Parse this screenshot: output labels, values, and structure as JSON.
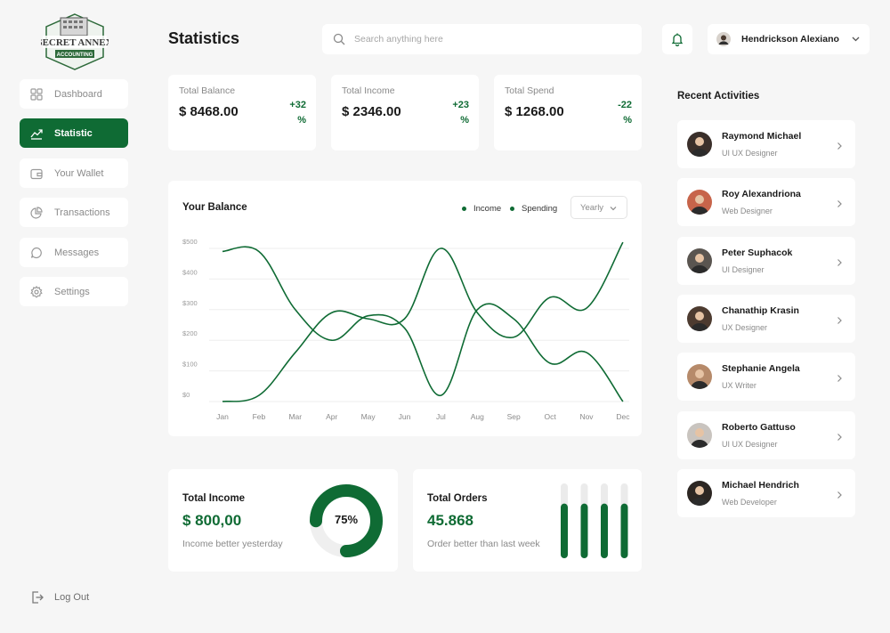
{
  "brand": {
    "logo_line1": "SECRET ANNEX",
    "logo_line2": "ACCOUNTING",
    "accent": "#0f6b34"
  },
  "sidebar": {
    "items": [
      {
        "label": "Dashboard",
        "icon": "grid-icon",
        "active": false
      },
      {
        "label": "Statistic",
        "icon": "trend-chart-icon",
        "active": true
      },
      {
        "label": "Your Wallet",
        "icon": "wallet-icon",
        "active": false
      },
      {
        "label": "Transactions",
        "icon": "pie-chart-icon",
        "active": false
      },
      {
        "label": "Messages",
        "icon": "chat-bubble-icon",
        "active": false
      },
      {
        "label": "Settings",
        "icon": "gear-icon",
        "active": false
      }
    ],
    "logout_label": "Log Out"
  },
  "header": {
    "title": "Statistics",
    "search_placeholder": "Search anything here",
    "user_name": "Hendrickson Alexiano"
  },
  "stats": [
    {
      "label": "Total Balance",
      "value": "$ 8468.00",
      "delta": "+32 %"
    },
    {
      "label": "Total Income",
      "value": "$ 2346.00",
      "delta": "+23 %"
    },
    {
      "label": "Total Spend",
      "value": "$ 1268.00",
      "delta": "-22 %"
    }
  ],
  "balance_chart": {
    "title": "Your Balance",
    "period": "Yearly",
    "legend": [
      "Income",
      "Spending"
    ]
  },
  "chart_data": {
    "type": "line",
    "title": "Your Balance",
    "categories": [
      "Jan",
      "Feb",
      "Mar",
      "Apr",
      "May",
      "Jun",
      "Jul",
      "Aug",
      "Sep",
      "Oct",
      "Nov",
      "Dec"
    ],
    "y_ticks": [
      "$0",
      "$100",
      "$200",
      "$300",
      "$400",
      "$500"
    ],
    "ylim": [
      0,
      500
    ],
    "grid": true,
    "legend_position": "top-right",
    "series": [
      {
        "name": "Income",
        "values": [
          490,
          490,
          300,
          200,
          280,
          240,
          20,
          300,
          270,
          125,
          160,
          0
        ]
      },
      {
        "name": "Spending",
        "values": [
          0,
          20,
          160,
          290,
          270,
          270,
          500,
          290,
          210,
          340,
          305,
          520
        ]
      }
    ]
  },
  "income_card": {
    "title": "Total Income",
    "value": "$ 800,00",
    "subtitle": "Income better yesterday",
    "percent_label": "75%",
    "percent": 0.75
  },
  "orders_card": {
    "title": "Total Orders",
    "value": "45.868",
    "subtitle": "Order better than last week",
    "bar_levels": [
      0.73,
      0.73,
      0.73,
      0.73
    ]
  },
  "recent_activities": {
    "title": "Recent Activities",
    "items": [
      {
        "name": "Raymond Michael",
        "role": "UI UX Designer",
        "avatar_color": "#3a2f2a"
      },
      {
        "name": "Roy Alexandriona",
        "role": "Web Designer",
        "avatar_color": "#c7644a"
      },
      {
        "name": "Peter Suphacok",
        "role": "UI Designer",
        "avatar_color": "#5a5550"
      },
      {
        "name": "Chanathip Krasin",
        "role": "UX Designer",
        "avatar_color": "#4d3b30"
      },
      {
        "name": "Stephanie Angela",
        "role": "UX Writer",
        "avatar_color": "#b68a6a"
      },
      {
        "name": "Roberto Gattuso",
        "role": "UI UX Designer",
        "avatar_color": "#c9c4bf"
      },
      {
        "name": "Michael Hendrich",
        "role": "Web Developer",
        "avatar_color": "#2c2622"
      }
    ]
  }
}
